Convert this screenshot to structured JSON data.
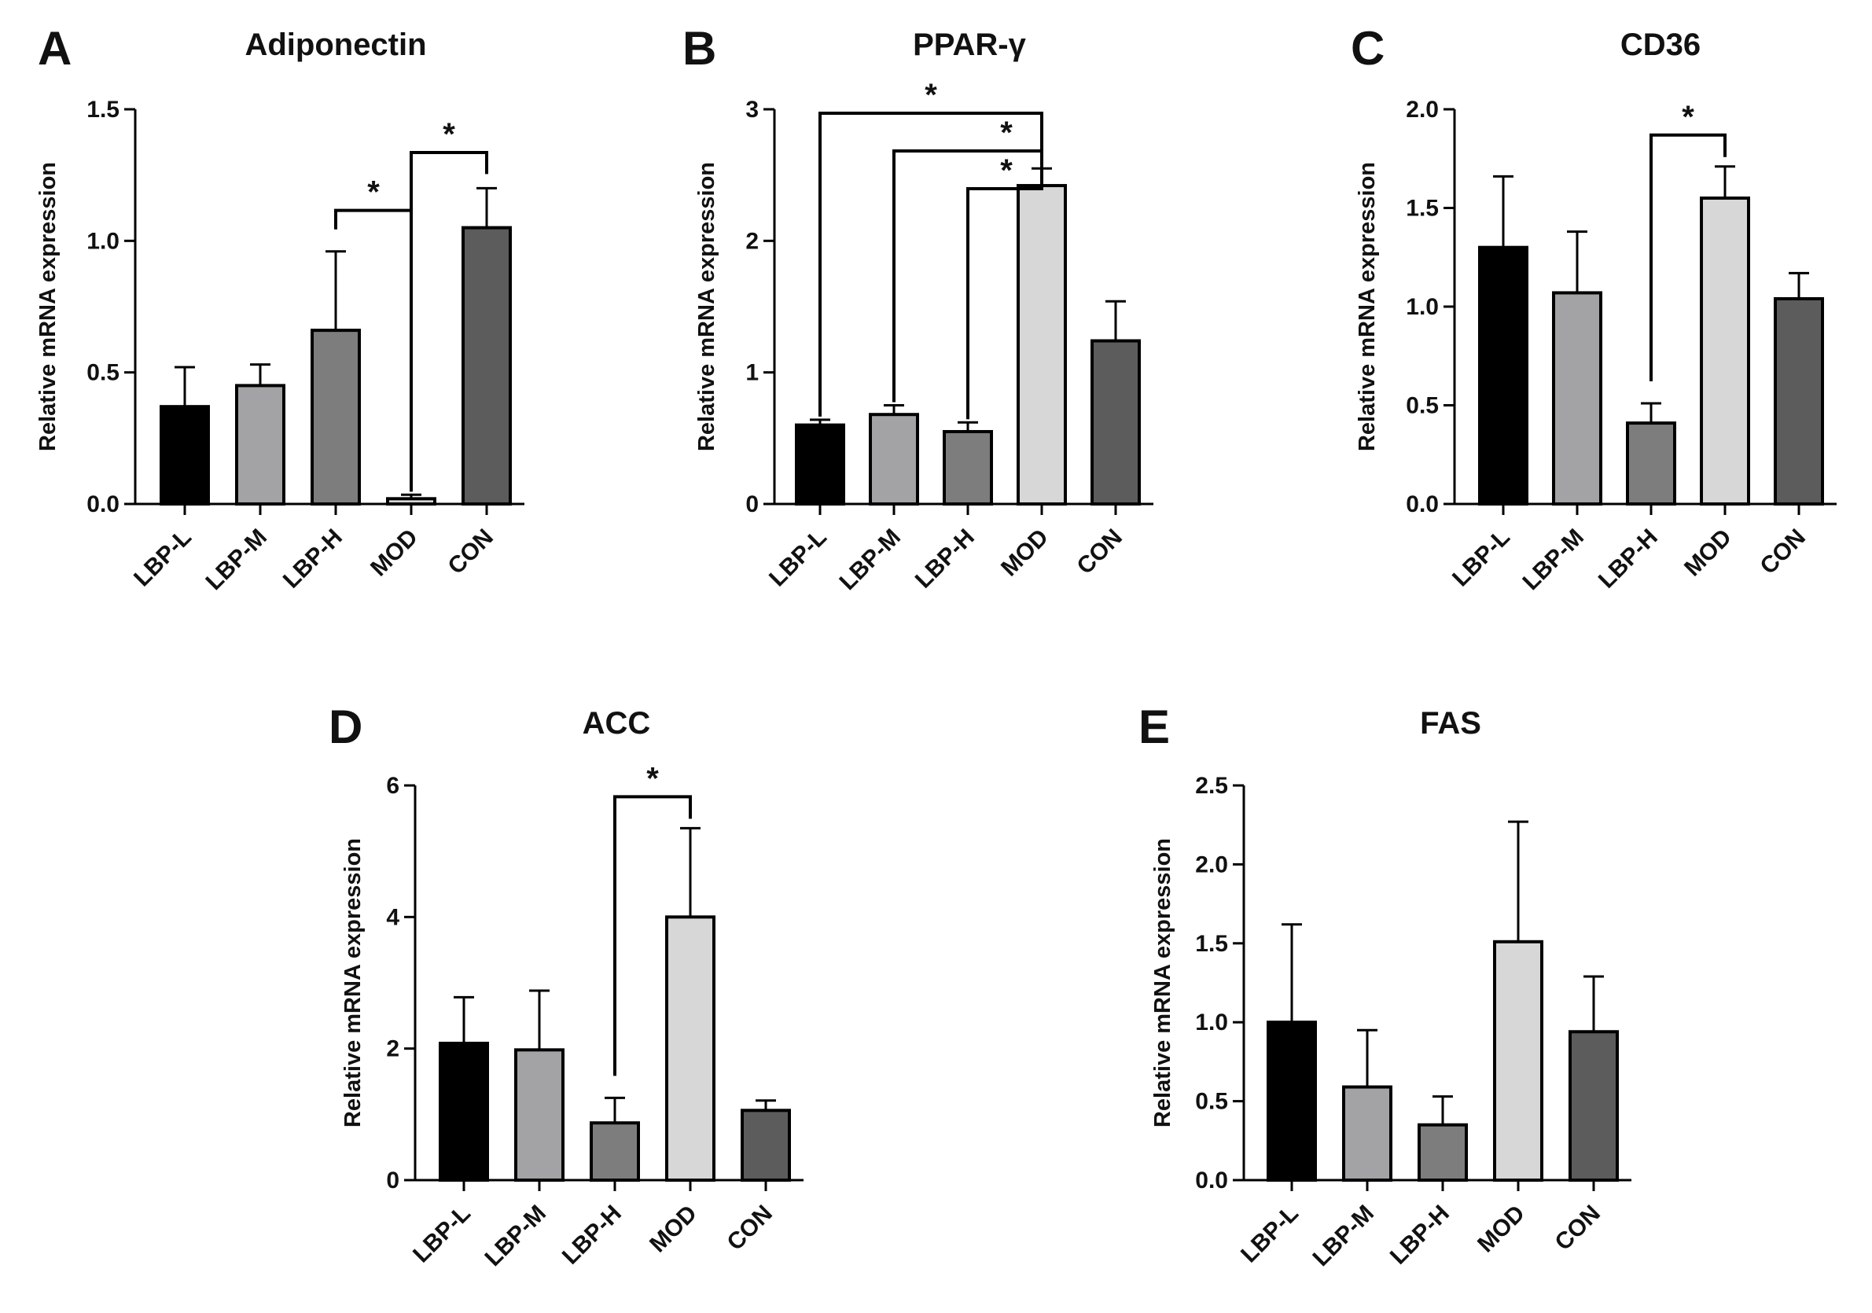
{
  "chart_data": [
    {
      "panel": "A",
      "type": "bar",
      "title": "Adiponectin",
      "ylabel": "Relative mRNA expression",
      "ylim": [
        0,
        1.5
      ],
      "yticks": [
        "0.0",
        "0.5",
        "1.0",
        "1.5"
      ],
      "categories": [
        "LBP-L",
        "LBP-M",
        "LBP-H",
        "MOD",
        "CON"
      ],
      "values": [
        0.37,
        0.45,
        0.66,
        0.02,
        1.05
      ],
      "errors": [
        0.15,
        0.08,
        0.3,
        0.015,
        0.15
      ],
      "significance": [
        {
          "from": "LBP-H",
          "to": "MOD",
          "label": "*"
        },
        {
          "from": "MOD",
          "to": "CON",
          "label": "*"
        }
      ]
    },
    {
      "panel": "B",
      "type": "bar",
      "title": "PPAR-γ",
      "ylabel": "Relative mRNA expression",
      "ylim": [
        0,
        3
      ],
      "yticks": [
        "0",
        "1",
        "2",
        "3"
      ],
      "categories": [
        "LBP-L",
        "LBP-M",
        "LBP-H",
        "MOD",
        "CON"
      ],
      "values": [
        0.6,
        0.68,
        0.55,
        2.42,
        1.24
      ],
      "errors": [
        0.04,
        0.07,
        0.07,
        0.13,
        0.3
      ],
      "significance": [
        {
          "from": "LBP-L",
          "to": "MOD",
          "label": "*"
        },
        {
          "from": "LBP-M",
          "to": "MOD",
          "label": "*"
        },
        {
          "from": "LBP-H",
          "to": "MOD",
          "label": "*"
        }
      ]
    },
    {
      "panel": "C",
      "type": "bar",
      "title": "CD36",
      "ylabel": "Relative mRNA expression",
      "ylim": [
        0,
        2.0
      ],
      "yticks": [
        "0.0",
        "0.5",
        "1.0",
        "1.5",
        "2.0"
      ],
      "categories": [
        "LBP-L",
        "LBP-M",
        "LBP-H",
        "MOD",
        "CON"
      ],
      "values": [
        1.3,
        1.07,
        0.41,
        1.55,
        1.04
      ],
      "errors": [
        0.36,
        0.31,
        0.1,
        0.16,
        0.13
      ],
      "significance": [
        {
          "from": "LBP-H",
          "to": "MOD",
          "label": "*"
        }
      ]
    },
    {
      "panel": "D",
      "type": "bar",
      "title": "ACC",
      "ylabel": "Relative mRNA expression",
      "ylim": [
        0,
        6
      ],
      "yticks": [
        "0",
        "2",
        "4",
        "6"
      ],
      "categories": [
        "LBP-L",
        "LBP-M",
        "LBP-H",
        "MOD",
        "CON"
      ],
      "values": [
        2.08,
        1.98,
        0.87,
        4.0,
        1.06
      ],
      "errors": [
        0.7,
        0.9,
        0.38,
        1.35,
        0.15
      ],
      "significance": [
        {
          "from": "LBP-H",
          "to": "MOD",
          "label": "*"
        }
      ]
    },
    {
      "panel": "E",
      "type": "bar",
      "title": "FAS",
      "ylabel": "Relative mRNA expression",
      "ylim": [
        0,
        2.5
      ],
      "yticks": [
        "0.0",
        "0.5",
        "1.0",
        "1.5",
        "2.0",
        "2.5"
      ],
      "categories": [
        "LBP-L",
        "LBP-M",
        "LBP-H",
        "MOD",
        "CON"
      ],
      "values": [
        1.0,
        0.59,
        0.35,
        1.51,
        0.94
      ],
      "errors": [
        0.62,
        0.36,
        0.18,
        0.76,
        0.35
      ],
      "significance": []
    }
  ],
  "bar_colors": [
    "#000000",
    "#a3a3a6",
    "#7d7d7d",
    "#d7d7d7",
    "#5c5c5c"
  ]
}
